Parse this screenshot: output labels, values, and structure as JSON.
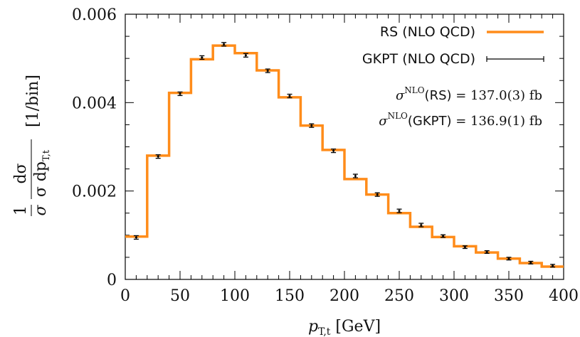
{
  "chart_data": {
    "type": "line",
    "xlabel": "p_{T,t} [GeV]",
    "ylabel": "1/σ dσ/dp_{T,t} [1/bin]",
    "xlim": [
      0,
      400
    ],
    "ylim": [
      0,
      0.006
    ],
    "x_ticks": [
      "0",
      "50",
      "100",
      "150",
      "200",
      "250",
      "300",
      "350",
      "400"
    ],
    "y_ticks": [
      "0",
      "0.002",
      "0.004",
      "0.006"
    ],
    "bin_edges": [
      0,
      20,
      40,
      60,
      80,
      100,
      120,
      140,
      160,
      180,
      200,
      220,
      240,
      260,
      280,
      300,
      320,
      340,
      360,
      380,
      400
    ],
    "series": [
      {
        "name": "RS (NLO QCD)",
        "style": "step-line",
        "color": "#ff8c1a",
        "values": [
          0.00097,
          0.0028,
          0.00422,
          0.00498,
          0.00529,
          0.00512,
          0.00473,
          0.00412,
          0.00348,
          0.00293,
          0.00227,
          0.00192,
          0.0015,
          0.00119,
          0.00096,
          0.00075,
          0.00061,
          0.00047,
          0.00037,
          0.00029
        ]
      },
      {
        "name": "GKPT (NLO QCD)",
        "style": "error-bars",
        "color": "#000000",
        "x": [
          10,
          30,
          50,
          70,
          90,
          110,
          130,
          150,
          170,
          190,
          210,
          230,
          250,
          270,
          290,
          310,
          330,
          350,
          370,
          390
        ],
        "values": [
          0.00095,
          0.00278,
          0.0042,
          0.00502,
          0.00532,
          0.00507,
          0.00472,
          0.00415,
          0.00348,
          0.00291,
          0.00234,
          0.00192,
          0.00155,
          0.00123,
          0.00098,
          0.00073,
          0.00062,
          0.00047,
          0.00038,
          0.00031
        ],
        "errors": [
          4e-05,
          4e-05,
          4e-05,
          4e-05,
          4e-05,
          4e-05,
          4e-05,
          4e-05,
          4e-05,
          4e-05,
          4e-05,
          4e-05,
          4e-05,
          4e-05,
          3e-05,
          3e-05,
          3e-05,
          3e-05,
          3e-05,
          3e-05
        ]
      }
    ],
    "legend_position": "top-right",
    "annotations": {
      "rs_sym": "σ",
      "rs_sup": "NLO",
      "rs_name": "(RS)",
      "rs_value": " = 137.0(3) fb",
      "gkpt_sym": "σ",
      "gkpt_sup": "NLO",
      "gkpt_name": "(GKPT)",
      "gkpt_value": " = 136.9(1) fb"
    },
    "axis_labels": {
      "x_main": "p",
      "x_sub": "T,t",
      "x_unit": " [GeV]",
      "y_one": "1",
      "y_sigma": "σ",
      "y_dsigma": "dσ",
      "y_dp": "σ dp",
      "y_sub": "T,t",
      "y_unit": "[1/bin]"
    }
  }
}
